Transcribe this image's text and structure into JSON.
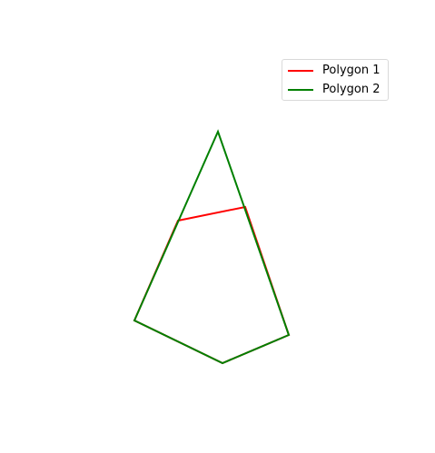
{
  "legend": {
    "items": [
      {
        "label": "Polygon 1",
        "color": "#ff0000"
      },
      {
        "label": "Polygon 2",
        "color": "#008000"
      }
    ]
  },
  "chart_data": {
    "type": "line",
    "grid": false,
    "axes_visible": false,
    "legend_position": "top-right",
    "series": [
      {
        "name": "Polygon 1",
        "color": "#ff0000",
        "points": [
          [
            196,
            243
          ],
          [
            270,
            228
          ],
          [
            318,
            369
          ],
          [
            245,
            400
          ],
          [
            148,
            353
          ]
        ]
      },
      {
        "name": "Polygon 2",
        "color": "#008000",
        "points": [
          [
            240,
            145
          ],
          [
            318,
            369
          ],
          [
            245,
            400
          ],
          [
            148,
            353
          ]
        ]
      }
    ]
  }
}
